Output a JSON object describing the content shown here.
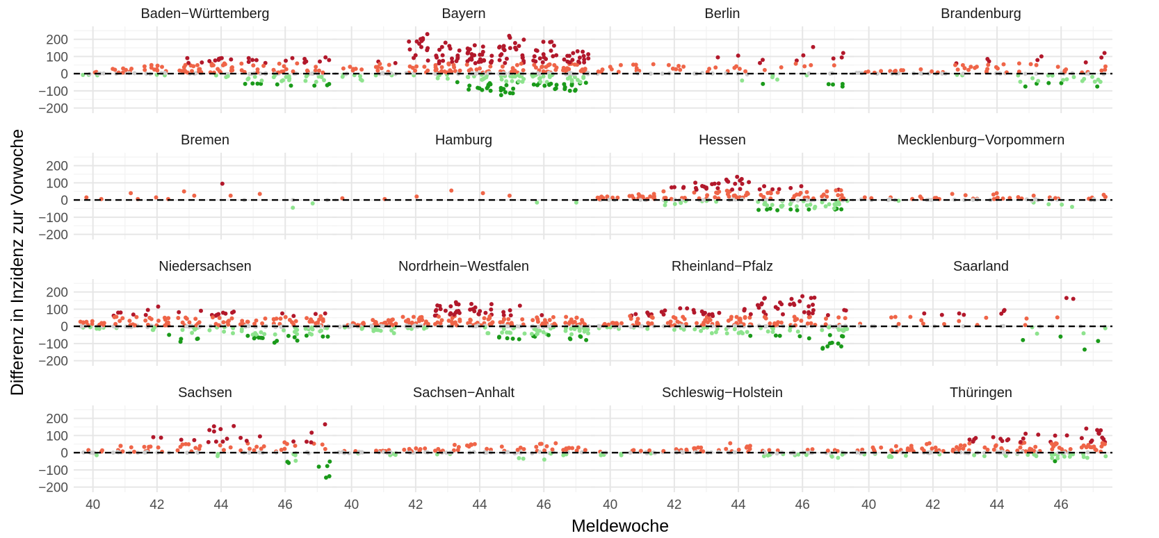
{
  "chart_data": {
    "type": "scatter",
    "title": "",
    "xlabel": "Meldewoche",
    "ylabel": "Differenz in Inzidenz zur Vorwoche",
    "x_ticks": [
      40,
      42,
      44,
      46
    ],
    "y_ticks": [
      200,
      100,
      0,
      -100,
      -200
    ],
    "xlim": [
      39.4,
      47.6
    ],
    "ylim": [
      -230,
      275
    ],
    "grid": true,
    "reference_line": {
      "y": 0,
      "style": "dashed"
    },
    "color_scale": {
      "strong_increase": "#b2182b",
      "increase": "#ef6548",
      "slight_change": "#cccccc",
      "decrease": "#8ee38e",
      "strong_decrease": "#1a9a1a"
    },
    "panels": [
      {
        "name": "Baden−Württemberg",
        "weeks": [
          {
            "w": 40,
            "n": 9,
            "min": -10,
            "max": 10
          },
          {
            "w": 41,
            "n": 12,
            "min": 0,
            "max": 30
          },
          {
            "w": 42,
            "n": 16,
            "min": -10,
            "max": 50
          },
          {
            "w": 43,
            "n": 24,
            "min": 0,
            "max": 90
          },
          {
            "w": 44,
            "n": 28,
            "min": -20,
            "max": 90
          },
          {
            "w": 45,
            "n": 26,
            "min": -60,
            "max": 90
          },
          {
            "w": 46,
            "n": 28,
            "min": -70,
            "max": 90
          },
          {
            "w": 47,
            "n": 28,
            "min": -70,
            "max": 95
          }
        ]
      },
      {
        "name": "Bayern",
        "weeks": [
          {
            "w": 40,
            "n": 14,
            "min": -40,
            "max": 40
          },
          {
            "w": 41,
            "n": 18,
            "min": -10,
            "max": 70
          },
          {
            "w": 42,
            "n": 26,
            "min": -10,
            "max": 230
          },
          {
            "w": 43,
            "n": 50,
            "min": -50,
            "max": 180
          },
          {
            "w": 44,
            "n": 70,
            "min": -100,
            "max": 165
          },
          {
            "w": 45,
            "n": 70,
            "min": -125,
            "max": 220
          },
          {
            "w": 46,
            "n": 65,
            "min": -90,
            "max": 185
          },
          {
            "w": 47,
            "n": 70,
            "min": -100,
            "max": 130
          }
        ]
      },
      {
        "name": "Berlin",
        "weeks": [
          {
            "w": 40,
            "n": 8,
            "min": 0,
            "max": 50
          },
          {
            "w": 41,
            "n": 8,
            "min": 0,
            "max": 55
          },
          {
            "w": 42,
            "n": 8,
            "min": 0,
            "max": 50
          },
          {
            "w": 43,
            "n": 8,
            "min": 0,
            "max": 95
          },
          {
            "w": 44,
            "n": 10,
            "min": -40,
            "max": 105
          },
          {
            "w": 45,
            "n": 8,
            "min": -60,
            "max": 80
          },
          {
            "w": 46,
            "n": 8,
            "min": -10,
            "max": 155
          },
          {
            "w": 47,
            "n": 10,
            "min": -75,
            "max": 120
          }
        ]
      },
      {
        "name": "Brandenburg",
        "weeks": [
          {
            "w": 40,
            "n": 8,
            "min": 0,
            "max": 15
          },
          {
            "w": 41,
            "n": 10,
            "min": 0,
            "max": 20
          },
          {
            "w": 42,
            "n": 10,
            "min": 0,
            "max": 25
          },
          {
            "w": 43,
            "n": 12,
            "min": -10,
            "max": 60
          },
          {
            "w": 44,
            "n": 14,
            "min": 0,
            "max": 85
          },
          {
            "w": 45,
            "n": 14,
            "min": -75,
            "max": 100
          },
          {
            "w": 46,
            "n": 14,
            "min": -55,
            "max": 40
          },
          {
            "w": 47,
            "n": 18,
            "min": -75,
            "max": 120
          }
        ]
      },
      {
        "name": "Bremen",
        "weeks": [
          {
            "w": 40,
            "n": 2,
            "min": 5,
            "max": 15
          },
          {
            "w": 41,
            "n": 2,
            "min": 5,
            "max": 40
          },
          {
            "w": 42,
            "n": 2,
            "min": 5,
            "max": 15
          },
          {
            "w": 43,
            "n": 2,
            "min": 25,
            "max": 50
          },
          {
            "w": 44,
            "n": 2,
            "min": 25,
            "max": 95
          },
          {
            "w": 45,
            "n": 2,
            "min": 0,
            "max": 35
          },
          {
            "w": 46,
            "n": 2,
            "min": -45,
            "max": 0
          },
          {
            "w": 47,
            "n": 2,
            "min": -20,
            "max": 0
          }
        ]
      },
      {
        "name": "Hamburg",
        "weeks": [
          {
            "w": 40,
            "n": 1,
            "min": 5,
            "max": 10
          },
          {
            "w": 41,
            "n": 1,
            "min": 0,
            "max": 5
          },
          {
            "w": 42,
            "n": 1,
            "min": 10,
            "max": 20
          },
          {
            "w": 43,
            "n": 1,
            "min": 45,
            "max": 55
          },
          {
            "w": 44,
            "n": 1,
            "min": 35,
            "max": 40
          },
          {
            "w": 45,
            "n": 1,
            "min": 20,
            "max": 25
          },
          {
            "w": 46,
            "n": 1,
            "min": -20,
            "max": -15
          },
          {
            "w": 47,
            "n": 1,
            "min": -20,
            "max": -15
          }
        ]
      },
      {
        "name": "Hessen",
        "weeks": [
          {
            "w": 40,
            "n": 12,
            "min": 0,
            "max": 20
          },
          {
            "w": 41,
            "n": 18,
            "min": 0,
            "max": 35
          },
          {
            "w": 42,
            "n": 22,
            "min": -30,
            "max": 75
          },
          {
            "w": 43,
            "n": 26,
            "min": -10,
            "max": 100
          },
          {
            "w": 44,
            "n": 28,
            "min": 0,
            "max": 135
          },
          {
            "w": 45,
            "n": 28,
            "min": -60,
            "max": 80
          },
          {
            "w": 46,
            "n": 28,
            "min": -60,
            "max": 80
          },
          {
            "w": 47,
            "n": 28,
            "min": -55,
            "max": 60
          }
        ]
      },
      {
        "name": "Mecklenburg−Vorpommern",
        "weeks": [
          {
            "w": 40,
            "n": 5,
            "min": 0,
            "max": 15
          },
          {
            "w": 41,
            "n": 6,
            "min": -5,
            "max": 15
          },
          {
            "w": 42,
            "n": 8,
            "min": 0,
            "max": 20
          },
          {
            "w": 43,
            "n": 8,
            "min": 0,
            "max": 35
          },
          {
            "w": 44,
            "n": 8,
            "min": 0,
            "max": 40
          },
          {
            "w": 45,
            "n": 8,
            "min": -15,
            "max": 25
          },
          {
            "w": 46,
            "n": 8,
            "min": -40,
            "max": 15
          },
          {
            "w": 47,
            "n": 8,
            "min": 0,
            "max": 30
          }
        ]
      },
      {
        "name": "Niedersachsen",
        "weeks": [
          {
            "w": 40,
            "n": 24,
            "min": -15,
            "max": 30
          },
          {
            "w": 41,
            "n": 24,
            "min": -10,
            "max": 80
          },
          {
            "w": 42,
            "n": 24,
            "min": -50,
            "max": 115
          },
          {
            "w": 43,
            "n": 30,
            "min": -90,
            "max": 90
          },
          {
            "w": 44,
            "n": 30,
            "min": -40,
            "max": 85
          },
          {
            "w": 45,
            "n": 30,
            "min": -70,
            "max": 45
          },
          {
            "w": 46,
            "n": 30,
            "min": -95,
            "max": 75
          },
          {
            "w": 47,
            "n": 32,
            "min": -60,
            "max": 75
          }
        ]
      },
      {
        "name": "Nordrhein−Westfalen",
        "weeks": [
          {
            "w": 40,
            "n": 24,
            "min": -15,
            "max": 20
          },
          {
            "w": 41,
            "n": 34,
            "min": -40,
            "max": 40
          },
          {
            "w": 42,
            "n": 40,
            "min": -15,
            "max": 55
          },
          {
            "w": 43,
            "n": 40,
            "min": 0,
            "max": 140
          },
          {
            "w": 44,
            "n": 40,
            "min": -40,
            "max": 130
          },
          {
            "w": 45,
            "n": 40,
            "min": -75,
            "max": 120
          },
          {
            "w": 46,
            "n": 40,
            "min": -60,
            "max": 65
          },
          {
            "w": 47,
            "n": 40,
            "min": -80,
            "max": 55
          }
        ]
      },
      {
        "name": "Rheinland−Pfalz",
        "weeks": [
          {
            "w": 40,
            "n": 20,
            "min": -15,
            "max": 20
          },
          {
            "w": 41,
            "n": 28,
            "min": -15,
            "max": 80
          },
          {
            "w": 42,
            "n": 32,
            "min": -20,
            "max": 105
          },
          {
            "w": 43,
            "n": 36,
            "min": -40,
            "max": 95
          },
          {
            "w": 44,
            "n": 36,
            "min": -55,
            "max": 100
          },
          {
            "w": 45,
            "n": 36,
            "min": -55,
            "max": 165
          },
          {
            "w": 46,
            "n": 36,
            "min": -70,
            "max": 175
          },
          {
            "w": 47,
            "n": 36,
            "min": -130,
            "max": 95
          }
        ]
      },
      {
        "name": "Saarland",
        "weeks": [
          {
            "w": 40,
            "n": 4,
            "min": 0,
            "max": 15
          },
          {
            "w": 41,
            "n": 5,
            "min": 0,
            "max": 55
          },
          {
            "w": 42,
            "n": 6,
            "min": 0,
            "max": 75
          },
          {
            "w": 43,
            "n": 5,
            "min": 0,
            "max": 75
          },
          {
            "w": 44,
            "n": 6,
            "min": 50,
            "max": 95
          },
          {
            "w": 45,
            "n": 6,
            "min": -80,
            "max": 45
          },
          {
            "w": 46,
            "n": 5,
            "min": -60,
            "max": 165
          },
          {
            "w": 47,
            "n": 6,
            "min": -135,
            "max": 0
          }
        ]
      },
      {
        "name": "Sachsen",
        "weeks": [
          {
            "w": 40,
            "n": 10,
            "min": -15,
            "max": 15
          },
          {
            "w": 41,
            "n": 12,
            "min": 0,
            "max": 40
          },
          {
            "w": 42,
            "n": 14,
            "min": 0,
            "max": 90
          },
          {
            "w": 43,
            "n": 14,
            "min": 0,
            "max": 75
          },
          {
            "w": 44,
            "n": 14,
            "min": -20,
            "max": 155
          },
          {
            "w": 45,
            "n": 14,
            "min": 0,
            "max": 95
          },
          {
            "w": 46,
            "n": 14,
            "min": -60,
            "max": 65
          },
          {
            "w": 47,
            "n": 14,
            "min": -145,
            "max": 165
          }
        ]
      },
      {
        "name": "Sachsen−Anhalt",
        "weeks": [
          {
            "w": 40,
            "n": 12,
            "min": -5,
            "max": 10
          },
          {
            "w": 41,
            "n": 14,
            "min": -15,
            "max": 15
          },
          {
            "w": 42,
            "n": 14,
            "min": 0,
            "max": 25
          },
          {
            "w": 43,
            "n": 14,
            "min": -10,
            "max": 45
          },
          {
            "w": 44,
            "n": 14,
            "min": 0,
            "max": 50
          },
          {
            "w": 45,
            "n": 14,
            "min": -35,
            "max": 35
          },
          {
            "w": 46,
            "n": 14,
            "min": -40,
            "max": 55
          },
          {
            "w": 47,
            "n": 14,
            "min": -15,
            "max": 30
          }
        ]
      },
      {
        "name": "Schleswig−Holstein",
        "weeks": [
          {
            "w": 40,
            "n": 10,
            "min": -15,
            "max": 5
          },
          {
            "w": 41,
            "n": 12,
            "min": -5,
            "max": 15
          },
          {
            "w": 42,
            "n": 14,
            "min": 0,
            "max": 20
          },
          {
            "w": 43,
            "n": 14,
            "min": 0,
            "max": 30
          },
          {
            "w": 44,
            "n": 14,
            "min": 0,
            "max": 55
          },
          {
            "w": 45,
            "n": 14,
            "min": -20,
            "max": 15
          },
          {
            "w": 46,
            "n": 14,
            "min": -15,
            "max": 20
          },
          {
            "w": 47,
            "n": 14,
            "min": -30,
            "max": 15
          }
        ]
      },
      {
        "name": "Thüringen",
        "weeks": [
          {
            "w": 40,
            "n": 14,
            "min": -10,
            "max": 30
          },
          {
            "w": 41,
            "n": 18,
            "min": -25,
            "max": 40
          },
          {
            "w": 42,
            "n": 20,
            "min": -10,
            "max": 55
          },
          {
            "w": 43,
            "n": 24,
            "min": -15,
            "max": 85
          },
          {
            "w": 44,
            "n": 26,
            "min": -20,
            "max": 90
          },
          {
            "w": 45,
            "n": 28,
            "min": -20,
            "max": 110
          },
          {
            "w": 46,
            "n": 28,
            "min": -50,
            "max": 100
          },
          {
            "w": 47,
            "n": 30,
            "min": -30,
            "max": 140
          }
        ]
      }
    ]
  }
}
